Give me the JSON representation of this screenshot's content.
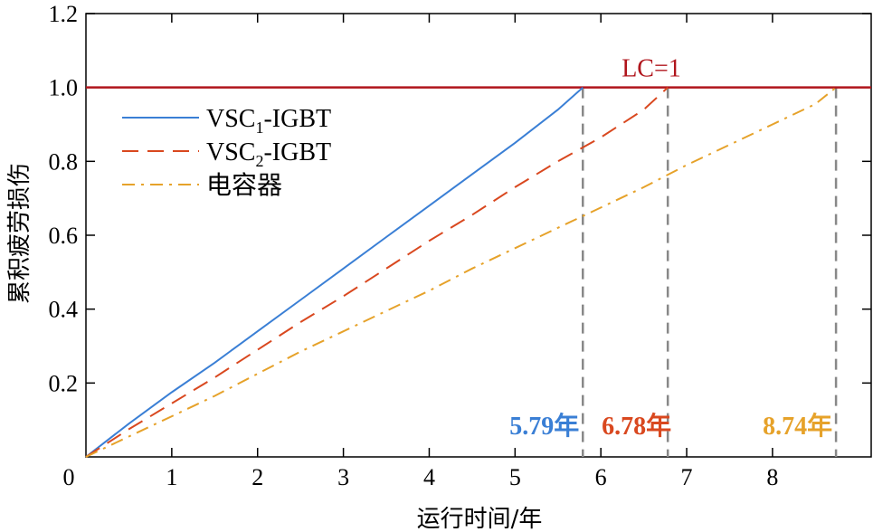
{
  "chart_data": {
    "type": "line",
    "title": "",
    "xlabel": "运行时间/年",
    "ylabel": "累积疲劳损伤",
    "xlim": [
      0,
      9.15
    ],
    "ylim": [
      0,
      1.2
    ],
    "x_ticks": [
      {
        "value": 0,
        "label": "0"
      },
      {
        "value": 1,
        "label": "1"
      },
      {
        "value": 2,
        "label": "2"
      },
      {
        "value": 3,
        "label": "3"
      },
      {
        "value": 4,
        "label": "4"
      },
      {
        "value": 5,
        "label": "5"
      },
      {
        "value": 6,
        "label": "6"
      },
      {
        "value": 7,
        "label": "7"
      },
      {
        "value": 8,
        "label": "8"
      }
    ],
    "y_ticks": [
      {
        "value": 0.2,
        "label": "0.2"
      },
      {
        "value": 0.4,
        "label": "0.4"
      },
      {
        "value": 0.6,
        "label": "0.6"
      },
      {
        "value": 0.8,
        "label": "0.8"
      },
      {
        "value": 1.0,
        "label": "1.0"
      },
      {
        "value": 1.2,
        "label": "1.2"
      }
    ],
    "grid": false,
    "legend_position": "top-left",
    "series": [
      {
        "legend_main": "VSC",
        "legend_sub": "1",
        "legend_tail": "-IGBT",
        "style": "solid",
        "color": "#3a7fd5",
        "x": [
          0,
          0.5,
          1,
          1.5,
          2,
          2.5,
          3,
          3.5,
          4,
          4.5,
          5,
          5.5,
          5.79
        ],
        "y": [
          0,
          0.09,
          0.175,
          0.255,
          0.34,
          0.425,
          0.51,
          0.595,
          0.68,
          0.765,
          0.85,
          0.94,
          1.0
        ]
      },
      {
        "legend_main": "VSC",
        "legend_sub": "2",
        "legend_tail": "-IGBT",
        "style": "dashed",
        "color": "#d9481f",
        "x": [
          0,
          0.5,
          1,
          1.5,
          2,
          2.5,
          3,
          3.5,
          4,
          4.5,
          5,
          5.5,
          6,
          6.5,
          6.78
        ],
        "y": [
          0,
          0.075,
          0.145,
          0.215,
          0.29,
          0.365,
          0.435,
          0.51,
          0.585,
          0.655,
          0.73,
          0.8,
          0.865,
          0.94,
          1.0
        ]
      },
      {
        "legend_main": "电容器",
        "legend_sub": "",
        "legend_tail": "",
        "style": "dashdot",
        "color": "#e6a22a",
        "x": [
          0,
          0.5,
          1,
          1.5,
          2,
          2.5,
          3,
          3.5,
          4,
          4.5,
          5,
          5.5,
          6,
          6.5,
          7,
          7.5,
          8,
          8.5,
          8.74
        ],
        "y": [
          0,
          0.055,
          0.11,
          0.165,
          0.225,
          0.285,
          0.34,
          0.395,
          0.45,
          0.51,
          0.565,
          0.62,
          0.675,
          0.73,
          0.79,
          0.845,
          0.9,
          0.955,
          1.0
        ]
      }
    ],
    "reference_line": {
      "y": 1.0,
      "label": "LC=1",
      "color": "#b0151c"
    },
    "annotations": [
      {
        "x": 5.79,
        "label": "5.79年",
        "color": "#3a7fd5"
      },
      {
        "x": 6.78,
        "label": "6.78年",
        "color": "#d9481f"
      },
      {
        "x": 8.74,
        "label": "8.74年",
        "color": "#e6a22a"
      }
    ]
  }
}
